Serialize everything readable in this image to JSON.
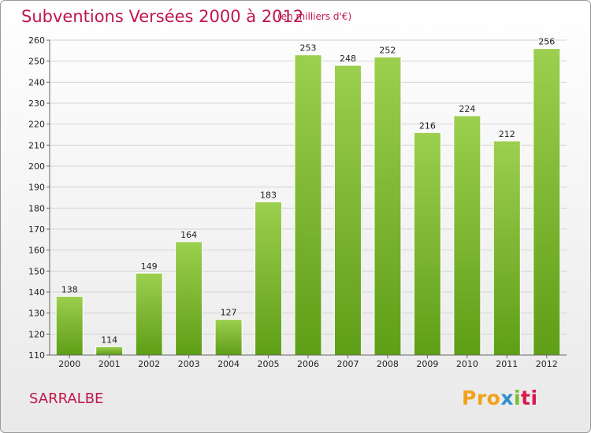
{
  "header": {
    "title": "Subventions Versées 2000 à 2012",
    "subtitle": "(en milliers d'€)"
  },
  "commune": "SARRALBE",
  "logo": {
    "p1": "Pro",
    "p2": "x",
    "p3": "i",
    "p4": "ti"
  },
  "colors": {
    "bar_light": "#9ccf4f",
    "bar_dark": "#5f9e17",
    "title": "#c0174b"
  },
  "chart_data": {
    "type": "bar",
    "title": "Subventions Versées 2000 à 2012",
    "subtitle": "(en milliers d'€)",
    "xlabel": "",
    "ylabel": "",
    "categories": [
      "2000",
      "2001",
      "2002",
      "2003",
      "2004",
      "2005",
      "2006",
      "2007",
      "2008",
      "2009",
      "2010",
      "2011",
      "2012"
    ],
    "values": [
      138,
      114,
      149,
      164,
      127,
      183,
      253,
      248,
      252,
      216,
      224,
      212,
      256
    ],
    "ylim": [
      110,
      260
    ],
    "yticks": [
      110,
      120,
      130,
      140,
      150,
      160,
      170,
      180,
      190,
      200,
      210,
      220,
      230,
      240,
      250,
      260
    ],
    "grid": true
  }
}
